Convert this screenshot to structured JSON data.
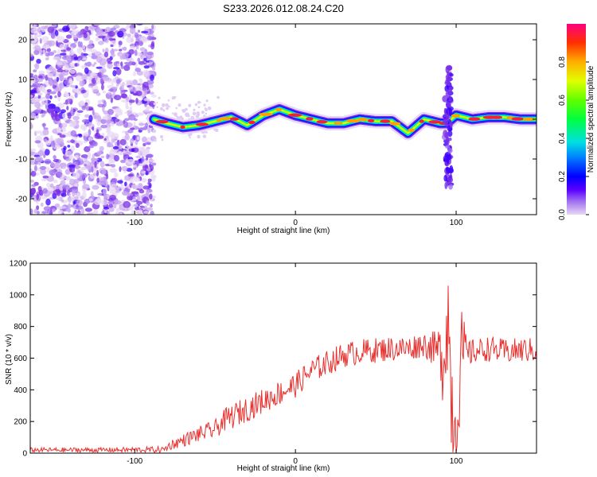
{
  "title": "S233.2026.012.08.24.C20",
  "chart_data": [
    {
      "type": "heatmap",
      "xlabel": "Height of straight line (km)",
      "ylabel": "Frequency (Hz)",
      "xlim": [
        -165,
        150
      ],
      "ylim": [
        -24,
        24
      ],
      "xticks": [
        -100,
        0,
        100
      ],
      "yticks": [
        -20,
        -10,
        0,
        10,
        20
      ],
      "colorbar": {
        "label": "Normalized spectral amplitude",
        "range": [
          0,
          1
        ],
        "ticks": [
          0,
          0.2,
          0.4,
          0.6,
          0.8
        ],
        "colors": [
          "#e8d8f6",
          "#c9a8f0",
          "#a070f0",
          "#7a2ee6",
          "#3b00ff",
          "#0030ff",
          "#00a0ff",
          "#00e0e0",
          "#00ff80",
          "#00ff00",
          "#80ff00",
          "#e0ff00",
          "#ffe000",
          "#ffa000",
          "#ff4000",
          "#ff0040",
          "#ff0080"
        ]
      },
      "noise_region_x": [
        -165,
        -88
      ],
      "ridge": {
        "x": [
          -88,
          -80,
          -70,
          -60,
          -50,
          -40,
          -30,
          -20,
          -10,
          0,
          10,
          20,
          30,
          40,
          50,
          60,
          70,
          80,
          90,
          94,
          100,
          110,
          120,
          130,
          140,
          150
        ],
        "freq": [
          0,
          -1,
          -2,
          -1.5,
          -0.5,
          0.5,
          -1.5,
          1,
          2.5,
          1,
          0,
          -1,
          -1,
          0,
          -0.5,
          -0.5,
          -3.5,
          0,
          -1,
          -1,
          1,
          0,
          0.5,
          0.5,
          0,
          0
        ]
      },
      "bursts": [
        {
          "x": 95,
          "freq_range": [
            -17,
            13
          ]
        }
      ]
    },
    {
      "type": "line",
      "xlabel": "Height of straight line (km)",
      "ylabel": "SNR (10 * v/v)",
      "xlim": [
        -165,
        150
      ],
      "ylim": [
        0,
        1200
      ],
      "xticks": [
        -100,
        0,
        100
      ],
      "yticks": [
        0,
        200,
        400,
        600,
        800,
        1000,
        1200
      ],
      "series": [
        {
          "name": "SNR",
          "color": "#e8312f",
          "x": [
            -165,
            -120,
            -82,
            -78,
            -70,
            -60,
            -50,
            -45,
            -40,
            -30,
            -20,
            -10,
            0,
            10,
            20,
            30,
            40,
            50,
            60,
            70,
            80,
            88,
            92,
            95,
            97,
            100,
            103,
            107,
            110,
            120,
            130,
            140,
            150
          ],
          "y": [
            20,
            20,
            22,
            50,
            80,
            120,
            150,
            200,
            230,
            280,
            330,
            380,
            430,
            520,
            570,
            620,
            640,
            650,
            660,
            660,
            690,
            650,
            600,
            900,
            350,
            150,
            650,
            620,
            640,
            660,
            640,
            650,
            650
          ],
          "noise": [
            15,
            15,
            20,
            30,
            40,
            50,
            60,
            70,
            80,
            80,
            80,
            80,
            80,
            80,
            80,
            80,
            80,
            80,
            80,
            80,
            80,
            120,
            300,
            350,
            400,
            400,
            300,
            100,
            80,
            80,
            80,
            80,
            80
          ]
        }
      ]
    }
  ]
}
